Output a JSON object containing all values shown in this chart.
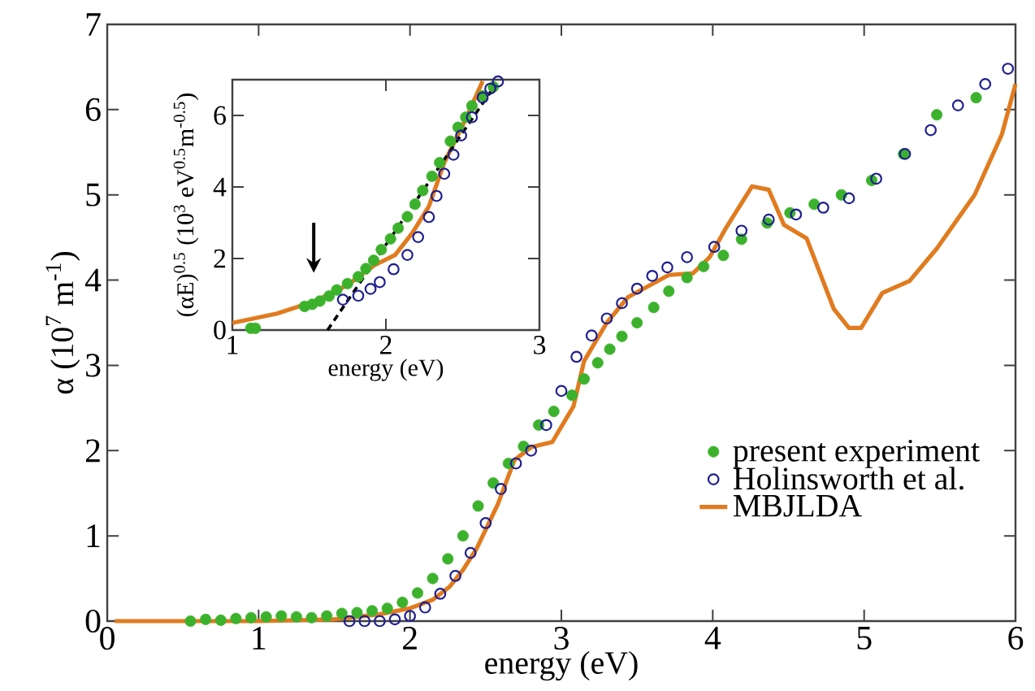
{
  "chart_data": [
    {
      "type": "scatter",
      "xlabel": "energy (eV)",
      "ylabel": "α  (10$^{7}$ m$^{-1}$)",
      "xlim": [
        0,
        6
      ],
      "ylim": [
        0,
        7
      ],
      "xticks": [
        0,
        1,
        2,
        3,
        4,
        5,
        6
      ],
      "yticks": [
        0,
        1,
        2,
        3,
        4,
        5,
        6,
        7
      ],
      "legend": "bottom right",
      "series": [
        {
          "name": "present experiment",
          "color": "#3cb22c",
          "marker": "circle",
          "x": [
            0.55,
            0.65,
            0.75,
            0.85,
            0.95,
            1.05,
            1.15,
            1.25,
            1.35,
            1.45,
            1.55,
            1.65,
            1.75,
            1.85,
            1.95,
            2.05,
            2.15,
            2.25,
            2.35,
            2.45,
            2.55,
            2.65,
            2.75,
            2.85,
            2.95,
            3.07,
            3.15,
            3.24,
            3.32,
            3.4,
            3.5,
            3.61,
            3.71,
            3.83,
            3.94,
            4.07,
            4.19,
            4.36,
            4.51,
            4.67,
            4.85,
            5.05,
            5.26,
            5.48,
            5.74
          ],
          "values": [
            0.0,
            0.02,
            0.01,
            0.03,
            0.04,
            0.05,
            0.06,
            0.05,
            0.04,
            0.06,
            0.09,
            0.1,
            0.12,
            0.15,
            0.22,
            0.33,
            0.5,
            0.73,
            1.0,
            1.35,
            1.62,
            1.85,
            2.05,
            2.3,
            2.46,
            2.65,
            2.84,
            3.03,
            3.19,
            3.34,
            3.5,
            3.68,
            3.87,
            4.03,
            4.16,
            4.29,
            4.48,
            4.67,
            4.79,
            4.89,
            5.0,
            5.17,
            5.48,
            5.94,
            6.14
          ]
        },
        {
          "name": "Holinsworth et al.",
          "color": "#1f1f8f",
          "marker": "circle",
          "x": [
            1.6,
            1.7,
            1.8,
            1.9,
            2.0,
            2.1,
            2.2,
            2.3,
            2.4,
            2.5,
            2.6,
            2.7,
            2.8,
            2.9,
            3.0,
            3.1,
            3.2,
            3.3,
            3.4,
            3.5,
            3.6,
            3.7,
            3.83,
            4.01,
            4.19,
            4.37,
            4.55,
            4.73,
            4.9,
            5.08,
            5.27,
            5.44,
            5.62,
            5.8,
            5.95
          ],
          "values": [
            0.0,
            0.0,
            0.0,
            0.02,
            0.06,
            0.16,
            0.32,
            0.53,
            0.8,
            1.15,
            1.55,
            1.85,
            2.0,
            2.3,
            2.7,
            3.1,
            3.35,
            3.55,
            3.73,
            3.9,
            4.05,
            4.15,
            4.27,
            4.39,
            4.58,
            4.71,
            4.77,
            4.85,
            4.96,
            5.19,
            5.48,
            5.76,
            6.05,
            6.3,
            6.48
          ]
        },
        {
          "name": "MBJLDA",
          "type": "line",
          "color": "#e07b1f",
          "line_style": "solid",
          "x": [
            0.05,
            1.0,
            1.5,
            1.8,
            2.0,
            2.15,
            2.26,
            2.35,
            2.44,
            2.58,
            2.69,
            2.8,
            2.94,
            3.08,
            3.15,
            3.3,
            3.44,
            3.71,
            3.87,
            3.98,
            4.09,
            4.26,
            4.37,
            4.47,
            4.62,
            4.8,
            4.9,
            4.98,
            5.12,
            5.3,
            5.48,
            5.73,
            5.91,
            6.0
          ],
          "values": [
            0.0,
            0.0,
            0.02,
            0.08,
            0.15,
            0.25,
            0.4,
            0.6,
            0.85,
            1.37,
            1.89,
            2.04,
            2.1,
            2.52,
            3.05,
            3.5,
            3.8,
            4.06,
            4.08,
            4.27,
            4.62,
            5.1,
            5.06,
            4.65,
            4.49,
            3.66,
            3.44,
            3.44,
            3.85,
            3.99,
            4.37,
            5.0,
            5.71,
            6.3
          ]
        }
      ]
    },
    {
      "type": "scatter",
      "xlabel": "energy (eV)",
      "ylabel": "(αE)$^{0.5}$ (10$^{3}$ eV$^{0.5}$m$^{-0.5}$)",
      "xlim": [
        1,
        3
      ],
      "ylim": [
        0,
        7
      ],
      "xticks": [
        1,
        2,
        3
      ],
      "yticks": [
        0,
        2,
        4,
        6
      ],
      "series": [
        {
          "color": "#3cb22c",
          "marker": "circle",
          "x": [
            1.12,
            1.15,
            1.47,
            1.52,
            1.57,
            1.63,
            1.68,
            1.75,
            1.82,
            1.87,
            1.92,
            1.97,
            2.03,
            2.08,
            2.14,
            2.19,
            2.24,
            2.3,
            2.35,
            2.42,
            2.47,
            2.52,
            2.56,
            2.63,
            2.7
          ],
          "values": [
            0.05,
            0.05,
            0.66,
            0.72,
            0.81,
            0.95,
            1.12,
            1.3,
            1.49,
            1.72,
            1.95,
            2.25,
            2.55,
            2.85,
            3.17,
            3.52,
            3.9,
            4.3,
            4.68,
            5.28,
            5.67,
            5.95,
            6.27,
            6.55,
            6.8
          ]
        },
        {
          "color": "#1f1f8f",
          "marker": "circle",
          "x": [
            1.72,
            1.82,
            1.9,
            1.96,
            2.05,
            2.14,
            2.21,
            2.28,
            2.33,
            2.38,
            2.44,
            2.49,
            2.56,
            2.63,
            2.68,
            2.73
          ],
          "values": [
            0.85,
            0.96,
            1.15,
            1.34,
            1.7,
            2.1,
            2.6,
            3.16,
            3.75,
            4.37,
            4.9,
            5.44,
            5.95,
            6.5,
            6.75,
            6.95
          ]
        },
        {
          "type": "line",
          "color": "#e07b1f",
          "line_style": "solid",
          "x": [
            1.0,
            1.29,
            1.54,
            1.75,
            1.92,
            2.06,
            2.17,
            2.28,
            2.38,
            2.52,
            2.63
          ],
          "values": [
            0.2,
            0.46,
            0.81,
            1.26,
            1.8,
            2.1,
            2.7,
            3.46,
            4.68,
            5.9,
            6.96
          ]
        },
        {
          "type": "line",
          "color": "#000000",
          "line_style": "dashed",
          "x": [
            1.62,
            2.72
          ],
          "values": [
            0.0,
            6.9
          ]
        }
      ]
    }
  ]
}
